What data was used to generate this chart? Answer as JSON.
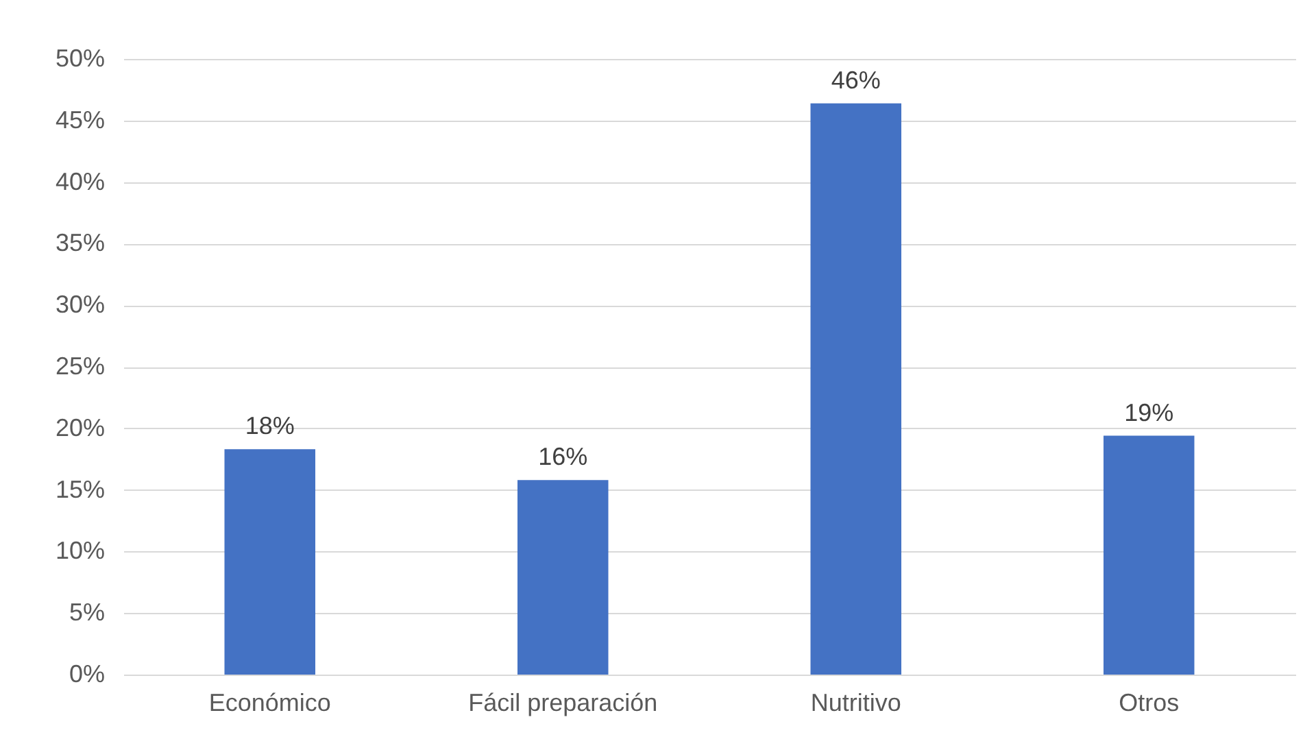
{
  "chart_data": {
    "type": "bar",
    "categories": [
      "Económico",
      "Fácil preparación",
      "Nutritivo",
      "Otros"
    ],
    "values": [
      18.3,
      15.8,
      46.4,
      19.4
    ],
    "value_labels": [
      "18%",
      "16%",
      "46%",
      "19%"
    ],
    "color": "#4472c4",
    "ylim": [
      0,
      50
    ],
    "yticks": [
      {
        "value": 0,
        "label": "0%"
      },
      {
        "value": 5,
        "label": "5%"
      },
      {
        "value": 10,
        "label": "10%"
      },
      {
        "value": 15,
        "label": "15%"
      },
      {
        "value": 20,
        "label": "20%"
      },
      {
        "value": 25,
        "label": "25%"
      },
      {
        "value": 30,
        "label": "30%"
      },
      {
        "value": 35,
        "label": "35%"
      },
      {
        "value": 40,
        "label": "40%"
      },
      {
        "value": 45,
        "label": "45%"
      },
      {
        "value": 50,
        "label": "50%"
      }
    ],
    "grid": "y"
  }
}
